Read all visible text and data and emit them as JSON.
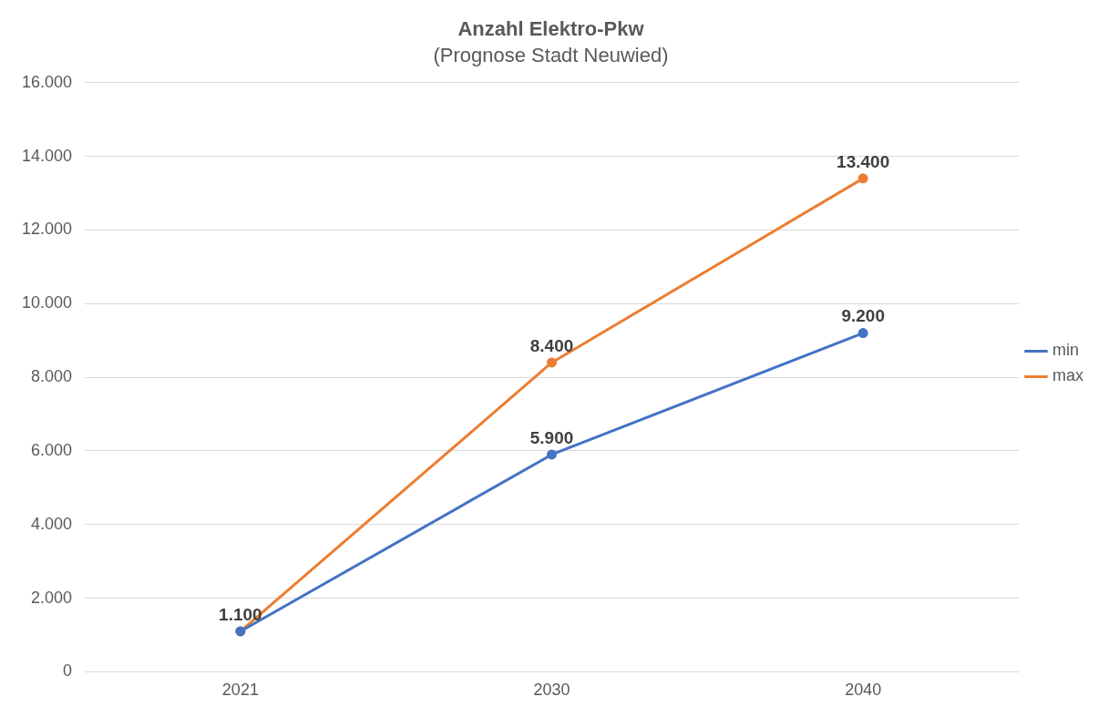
{
  "chart_data": {
    "type": "line",
    "title": "Anzahl Elektro-Pkw",
    "subtitle": "(Prognose Stadt Neuwied)",
    "categories": [
      "2021",
      "2030",
      "2040"
    ],
    "series": [
      {
        "name": "min",
        "color": "#4472c4",
        "values": [
          1100,
          5900,
          9200
        ],
        "value_labels": [
          null,
          "5.900",
          "9.200"
        ]
      },
      {
        "name": "max",
        "color": "#ed7d31",
        "values": [
          1100,
          8400,
          13400
        ],
        "value_labels": [
          "1.100",
          "8.400",
          "13.400"
        ]
      }
    ],
    "ylim": [
      0,
      16000
    ],
    "yticks": [
      {
        "value": 0,
        "label": "0"
      },
      {
        "value": 2000,
        "label": "2.000"
      },
      {
        "value": 4000,
        "label": "4.000"
      },
      {
        "value": 6000,
        "label": "6.000"
      },
      {
        "value": 8000,
        "label": "8.000"
      },
      {
        "value": 10000,
        "label": "10.000"
      },
      {
        "value": 12000,
        "label": "12.000"
      },
      {
        "value": 14000,
        "label": "14.000"
      },
      {
        "value": 16000,
        "label": "16.000"
      }
    ],
    "grid": "y",
    "legend": "right",
    "marker": "circle",
    "line_style": "solid"
  }
}
